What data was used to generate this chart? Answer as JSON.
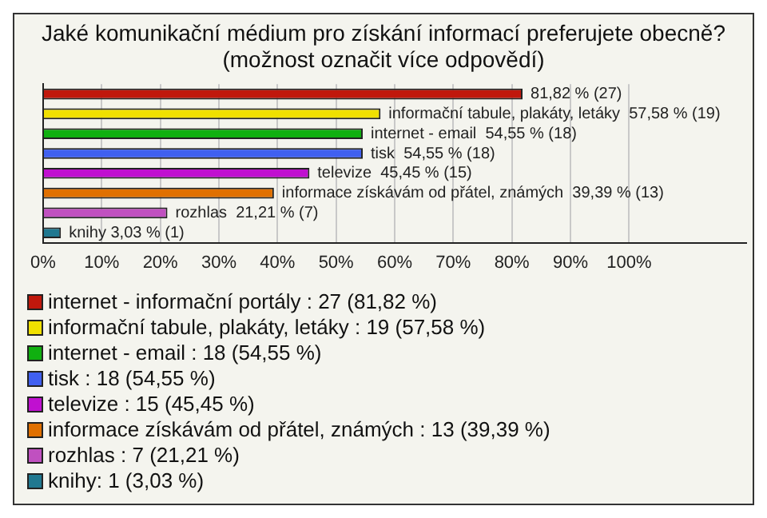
{
  "chart_data": {
    "type": "bar",
    "orientation": "horizontal",
    "stacked": true,
    "title": "Jaké komunikační médium pro získání informací preferujete obecně?",
    "subtitle": "(možnost označit více odpovědí)",
    "categories": [
      null,
      null,
      null,
      null,
      null,
      null,
      null,
      null
    ],
    "series": [
      {
        "name": "internet - informační portály : 27 (81,82 %)",
        "color": "#c0180c",
        "values": [
          81.82,
          null,
          null,
          null,
          null,
          null,
          null,
          null
        ],
        "value_labels": [
          "81,82 % (27)",
          null,
          null,
          null,
          null,
          null,
          null,
          null
        ]
      },
      {
        "name": "informační tabule, plakáty, letáky : 19 (57,58 %)",
        "color": "#f0e000",
        "values": [
          null,
          57.58,
          null,
          null,
          null,
          null,
          null,
          null
        ],
        "value_labels": [
          null,
          "informační tabule, plakáty, letáky  57,58 % (19)",
          null,
          null,
          null,
          null,
          null,
          null
        ]
      },
      {
        "name": "internet - email : 18 (54,55 %)",
        "color": "#10b010",
        "values": [
          null,
          null,
          54.55,
          null,
          null,
          null,
          null,
          null
        ],
        "value_labels": [
          null,
          null,
          "internet - email  54,55 % (18)",
          null,
          null,
          null,
          null,
          null
        ]
      },
      {
        "name": "tisk : 18 (54,55 %)",
        "color": "#4060f0",
        "values": [
          null,
          null,
          null,
          54.55,
          null,
          null,
          null,
          null
        ],
        "value_labels": [
          null,
          null,
          null,
          "tisk  54,55 % (18)",
          null,
          null,
          null,
          null
        ]
      },
      {
        "name": "televize : 15 (45,45 %)",
        "color": "#c010d0",
        "values": [
          null,
          null,
          null,
          null,
          45.45,
          null,
          null,
          null
        ],
        "value_labels": [
          null,
          null,
          null,
          null,
          "televize  45,45 % (15)",
          null,
          null,
          null
        ]
      },
      {
        "name": "informace získávám od přátel, známých : 13 (39,39 %)",
        "color": "#e07000",
        "values": [
          null,
          null,
          null,
          null,
          null,
          39.39,
          null,
          null
        ],
        "value_labels": [
          null,
          null,
          null,
          null,
          null,
          "informace získávám od přátel, známých  39,39 % (13)",
          null,
          null
        ]
      },
      {
        "name": "rozhlas : 7 (21,21 %)",
        "color": "#c050c0",
        "values": [
          null,
          null,
          null,
          null,
          null,
          null,
          21.21,
          null
        ],
        "value_labels": [
          null,
          null,
          null,
          null,
          null,
          null,
          "rozhlas  21,21 % (7)",
          null
        ]
      },
      {
        "name": "knihy: 1 (3,03 %)",
        "color": "#207890",
        "values": [
          null,
          null,
          null,
          null,
          null,
          null,
          null,
          3.03
        ],
        "value_labels": [
          null,
          null,
          null,
          null,
          null,
          null,
          null,
          "knihy 3,03 % (1)"
        ]
      }
    ],
    "xlim": [
      0,
      120
    ],
    "xticks": [
      {
        "value": 0,
        "label": "0%"
      },
      {
        "value": 10,
        "label": "10%"
      },
      {
        "value": 20,
        "label": "20%"
      },
      {
        "value": 30,
        "label": "30%"
      },
      {
        "value": 40,
        "label": "40%"
      },
      {
        "value": 50,
        "label": "50%"
      },
      {
        "value": 60,
        "label": "60%"
      },
      {
        "value": 70,
        "label": "70%"
      },
      {
        "value": 80,
        "label": "80%"
      },
      {
        "value": 90,
        "label": "90%"
      },
      {
        "value": 100,
        "label": "100%"
      }
    ],
    "grid": "x",
    "legend": "bottom"
  }
}
